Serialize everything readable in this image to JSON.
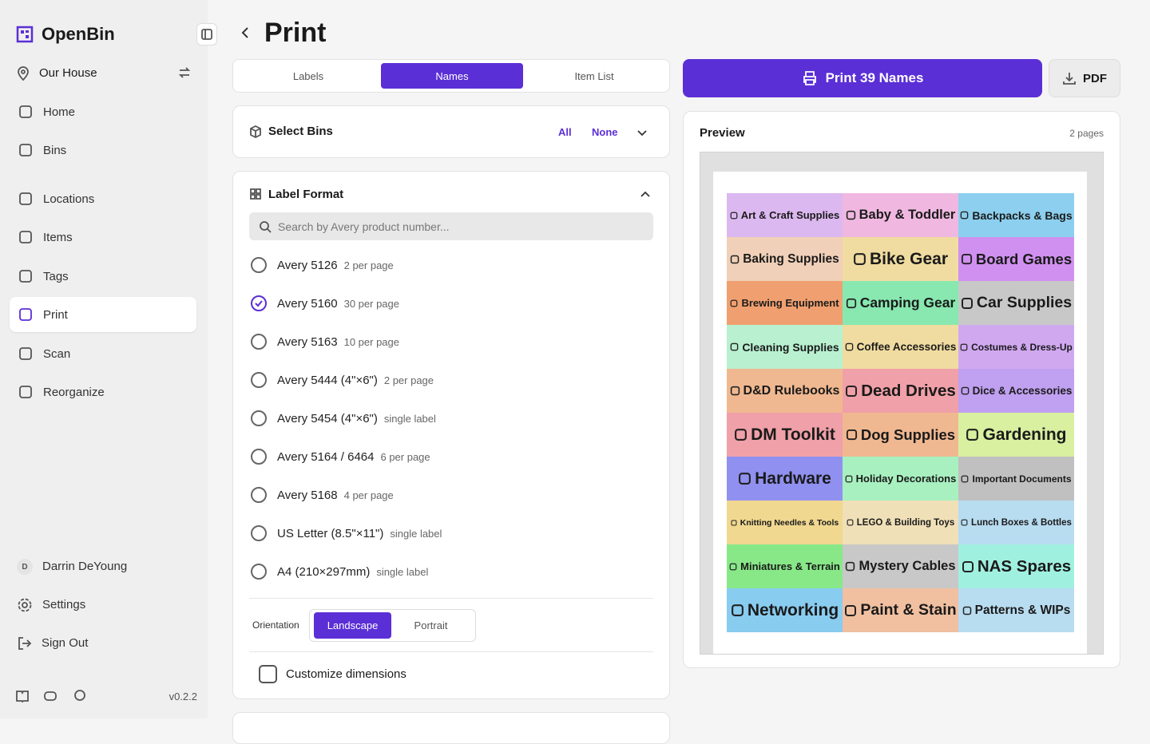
{
  "sidebar": {
    "app_name": "OpenBin",
    "location": "Our House",
    "nav": [
      {
        "label": "Home",
        "active": false
      },
      {
        "label": "Bins",
        "active": false
      },
      {
        "label": "Locations",
        "active": false
      },
      {
        "label": "Items",
        "active": false
      },
      {
        "label": "Tags",
        "active": false
      },
      {
        "label": "Print",
        "active": true
      },
      {
        "label": "Scan",
        "active": false
      },
      {
        "label": "Reorganize",
        "active": false
      }
    ],
    "user": {
      "initial": "D",
      "name": "Darrin DeYoung"
    },
    "settings": "Settings",
    "sign_out": "Sign Out",
    "version": "v0.2.2"
  },
  "header": {
    "title": "Print"
  },
  "tabs": [
    {
      "label": "Labels",
      "active": false
    },
    {
      "label": "Names",
      "active": true
    },
    {
      "label": "Item List",
      "active": false
    }
  ],
  "select_bins": {
    "title": "Select Bins",
    "all": "All",
    "none": "None"
  },
  "label_format": {
    "title": "Label Format",
    "search_placeholder": "Search by Avery product number...",
    "options": [
      {
        "name": "Avery 5126",
        "detail": "2 per page",
        "selected": false
      },
      {
        "name": "Avery 5160",
        "detail": "30 per page",
        "selected": true
      },
      {
        "name": "Avery 5163",
        "detail": "10 per page",
        "selected": false
      },
      {
        "name": "Avery 5444 (4\"×6\")",
        "detail": "2 per page",
        "selected": false
      },
      {
        "name": "Avery 5454 (4\"×6\")",
        "detail": "single label",
        "selected": false
      },
      {
        "name": "Avery 5164 / 6464",
        "detail": "6 per page",
        "selected": false
      },
      {
        "name": "Avery 5168",
        "detail": "4 per page",
        "selected": false
      },
      {
        "name": "US Letter (8.5\"×11\")",
        "detail": "single label",
        "selected": false
      },
      {
        "name": "A4 (210×297mm)",
        "detail": "single label",
        "selected": false
      }
    ],
    "orientation": {
      "label": "Orientation",
      "options": [
        {
          "label": "Landscape",
          "active": true
        },
        {
          "label": "Portrait",
          "active": false
        }
      ]
    },
    "customize": "Customize dimensions"
  },
  "actions": {
    "print": "Print 39 Names",
    "pdf": "PDF"
  },
  "preview": {
    "title": "Preview",
    "pages": "2 pages",
    "labels": [
      {
        "name": "Art & Craft Supplies",
        "color": "#dcb8f0"
      },
      {
        "name": "Baby & Toddler",
        "color": "#f0b8e0"
      },
      {
        "name": "Backpacks & Bags",
        "color": "#8ccfee"
      },
      {
        "name": "Baking Supplies",
        "color": "#f0d0b8"
      },
      {
        "name": "Bike Gear",
        "color": "#f0dca0"
      },
      {
        "name": "Board Games",
        "color": "#d090f0"
      },
      {
        "name": "Brewing Equipment",
        "color": "#f0a070"
      },
      {
        "name": "Camping Gear",
        "color": "#88e8b0"
      },
      {
        "name": "Car Supplies",
        "color": "#c8c8c8"
      },
      {
        "name": "Cleaning Supplies",
        "color": "#b8f0d0"
      },
      {
        "name": "Coffee Accessories",
        "color": "#f0dca0"
      },
      {
        "name": "Costumes & Dress-Up",
        "color": "#d0a8f0"
      },
      {
        "name": "D&D Rulebooks",
        "color": "#f0b890"
      },
      {
        "name": "Dead Drives",
        "color": "#f0a0a8"
      },
      {
        "name": "Dice & Accessories",
        "color": "#c0a0f0"
      },
      {
        "name": "DM Toolkit",
        "color": "#f0a0a8"
      },
      {
        "name": "Dog Supplies",
        "color": "#f0b890"
      },
      {
        "name": "Gardening",
        "color": "#d8f0a0"
      },
      {
        "name": "Hardware",
        "color": "#9090f0"
      },
      {
        "name": "Holiday Decorations",
        "color": "#a8f0c0"
      },
      {
        "name": "Important Documents",
        "color": "#c0c0c0"
      },
      {
        "name": "Knitting Needles & Tools",
        "color": "#f0d890"
      },
      {
        "name": "LEGO & Building Toys",
        "color": "#f0e0b8"
      },
      {
        "name": "Lunch Boxes & Bottles",
        "color": "#b8dcf0"
      },
      {
        "name": "Miniatures & Terrain",
        "color": "#88e888"
      },
      {
        "name": "Mystery Cables",
        "color": "#c8c8c8"
      },
      {
        "name": "NAS Spares",
        "color": "#a0f0e0"
      },
      {
        "name": "Networking",
        "color": "#88ccf0"
      },
      {
        "name": "Paint & Stain",
        "color": "#f0c0a0"
      },
      {
        "name": "Patterns & WIPs",
        "color": "#b8dcf0"
      }
    ]
  }
}
